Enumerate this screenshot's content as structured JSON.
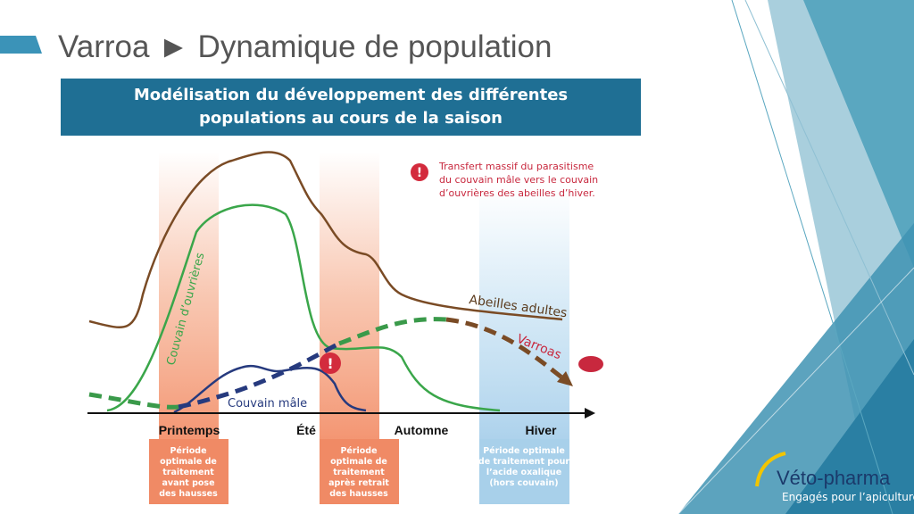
{
  "header": {
    "title": "Varroa ► Dynamique de population"
  },
  "banner": {
    "lines": [
      "Modélisation du développement des différentes",
      "populations au cours de la saison"
    ]
  },
  "annotation": {
    "lines": [
      "Transfert massif du parasitisme",
      "du couvain mâle vers le couvain",
      "d’ouvrières des abeilles d’hiver."
    ]
  },
  "curves": [
    "Abeilles adultes",
    "Couvain d’ouvrières",
    "Varroas",
    "Couvain mâle"
  ],
  "seasons": [
    "Printemps",
    "Été",
    "Automne",
    "Hiver"
  ],
  "periods": [
    {
      "lines": [
        "Période",
        "optimale de",
        "traitement",
        "avant pose",
        "des hausses"
      ]
    },
    {
      "lines": [
        "Période",
        "optimale de",
        "traitement",
        "après retrait",
        "des hausses"
      ]
    },
    {
      "lines": [
        "Période optimale",
        "de traitement pour",
        "l’acide oxalique",
        "(hors couvain)"
      ]
    }
  ],
  "logo": {
    "name": "Véto-pharma",
    "tagline": "Engagés pour l’apiculture"
  }
}
